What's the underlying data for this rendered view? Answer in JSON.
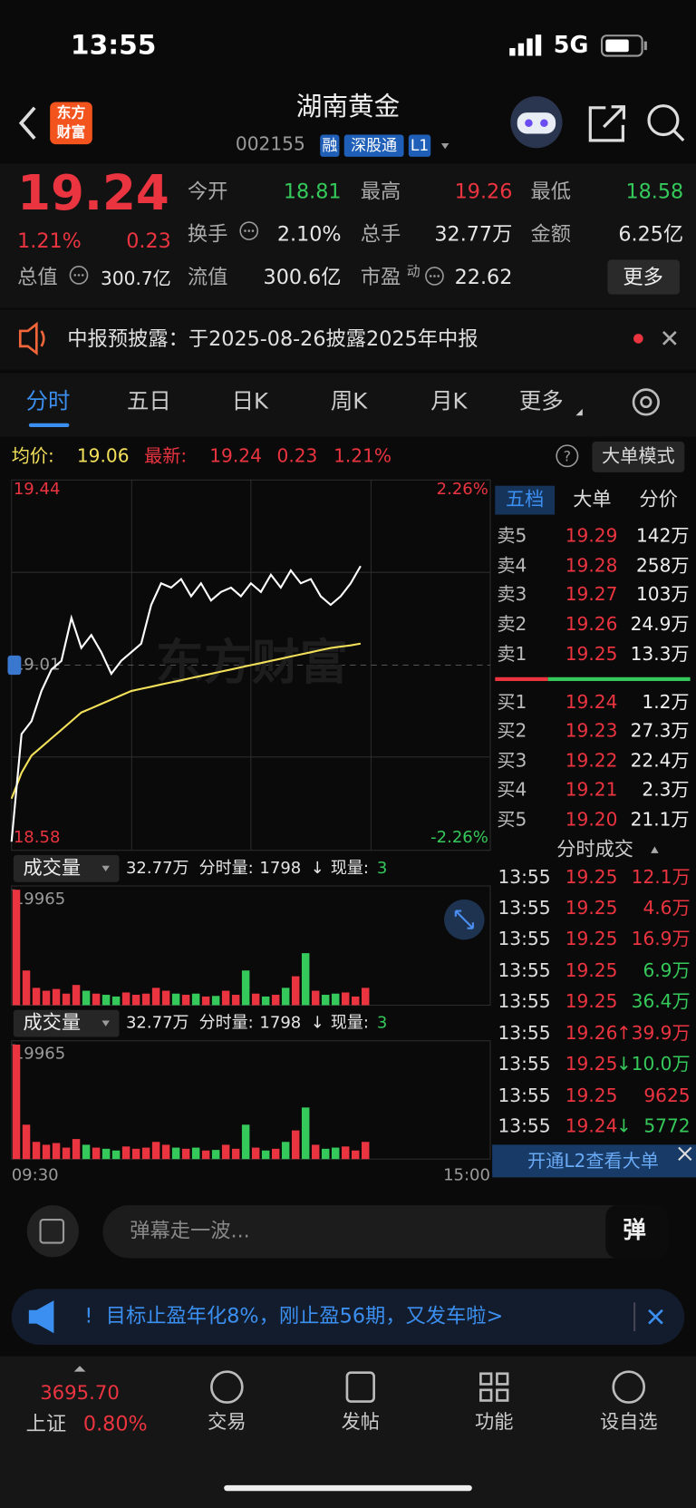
{
  "status_bar": {
    "time": "13:55",
    "network": "5G"
  },
  "header": {
    "logo": [
      "东方",
      "财富"
    ],
    "title": "湖南黄金",
    "code": "002155",
    "badges": [
      "融",
      "深股通",
      "L1"
    ]
  },
  "quote": {
    "price": "19.24",
    "change_pct": "1.21%",
    "change": "0.23",
    "stats": [
      {
        "label": "今开",
        "value": "18.81",
        "color": "#35c85a"
      },
      {
        "label": "最高",
        "value": "19.26",
        "color": "#ea3440"
      },
      {
        "label": "最低",
        "value": "18.58",
        "color": "#35c85a"
      },
      {
        "label": "换手",
        "value": "2.10%",
        "color": "#e6e6e6"
      },
      {
        "label": "总手",
        "value": "32.77万",
        "color": "#e6e6e6"
      },
      {
        "label": "金额",
        "value": "6.25亿",
        "color": "#e6e6e6"
      },
      {
        "label": "流值",
        "value": "300.6亿",
        "color": "#e6e6e6"
      },
      {
        "label": "市盈",
        "value": "22.62",
        "color": "#e6e6e6"
      }
    ],
    "total_value": {
      "label": "总值",
      "value": "300.7亿"
    },
    "pe_sup": "动",
    "more": "更多"
  },
  "notice": {
    "text": "中报预披露：于2025-08-26披露2025年中报"
  },
  "tabs": [
    "分时",
    "五日",
    "日K",
    "周K",
    "月K",
    "更多"
  ],
  "info": {
    "avg": "19.06",
    "last": "19.24",
    "change": "0.23",
    "pct": "1.21%",
    "help": "?",
    "mode": "大单模式"
  },
  "chart_data": {
    "type": "line",
    "ylim": [
      18.58,
      19.44
    ],
    "yticks": [
      18.58,
      19.01,
      19.44
    ],
    "y2lim": [
      -2.26,
      2.26
    ],
    "y2ticks": [
      {
        "value": 2.26,
        "label": "2.26%"
      },
      {
        "value": -2.26,
        "label": "-2.26%"
      }
    ],
    "x_labels": [
      "09:30",
      "15:00"
    ],
    "series": [
      {
        "name": "最新:",
        "color": "#ffffff",
        "values": [
          18.6,
          18.85,
          18.88,
          18.95,
          19.0,
          19.02,
          19.12,
          19.05,
          19.08,
          19.04,
          18.99,
          19.02,
          19.04,
          19.06,
          19.15,
          19.2,
          19.19,
          19.21,
          19.17,
          19.2,
          19.16,
          19.18,
          19.19,
          19.17,
          19.2,
          19.18,
          19.22,
          19.19,
          19.23,
          19.2,
          19.21,
          19.17,
          19.15,
          19.17,
          19.2,
          19.24
        ]
      },
      {
        "name": "均价:",
        "color": "#f2e05a",
        "values": [
          18.7,
          18.76,
          18.8,
          18.82,
          18.84,
          18.86,
          18.88,
          18.9,
          18.91,
          18.92,
          18.93,
          18.94,
          18.95,
          18.955,
          18.96,
          18.965,
          18.97,
          18.975,
          18.98,
          18.985,
          18.99,
          18.995,
          19.0,
          19.005,
          19.01,
          19.015,
          19.02,
          19.025,
          19.03,
          19.035,
          19.04,
          19.045,
          19.05,
          19.053,
          19.056,
          19.06
        ]
      }
    ],
    "volume": {
      "title": "成交量",
      "total": "32.77万",
      "minute_label": "分时量:",
      "minute": "1798",
      "arrow": "↓",
      "current_label": "现量:",
      "current": "3",
      "ylim": [
        0,
        19965
      ],
      "yticks": [
        19965
      ],
      "values": [
        19965,
        6000,
        3000,
        2500,
        2800,
        2000,
        3500,
        2500,
        2000,
        1800,
        1500,
        2200,
        1800,
        2000,
        3000,
        2500,
        2000,
        1800,
        2000,
        1500,
        1600,
        2500,
        1800,
        6000,
        2000,
        1500,
        1800,
        3000,
        5000,
        9000,
        2500,
        1800,
        2000,
        2200,
        1500,
        3000
      ]
    }
  },
  "order_book": {
    "tabs": [
      "五档",
      "大单",
      "分价"
    ],
    "asks": [
      {
        "label": "卖5",
        "price": "19.29",
        "volume": "142万"
      },
      {
        "label": "卖4",
        "price": "19.28",
        "volume": "258万"
      },
      {
        "label": "卖3",
        "price": "19.27",
        "volume": "103万"
      },
      {
        "label": "卖2",
        "price": "19.26",
        "volume": "24.9万"
      },
      {
        "label": "卖1",
        "price": "19.25",
        "volume": "13.3万"
      }
    ],
    "bids": [
      {
        "label": "买1",
        "price": "19.24",
        "volume": "1.2万"
      },
      {
        "label": "买2",
        "price": "19.23",
        "volume": "27.3万"
      },
      {
        "label": "买3",
        "price": "19.22",
        "volume": "22.4万"
      },
      {
        "label": "买4",
        "price": "19.21",
        "volume": "2.3万"
      },
      {
        "label": "买5",
        "price": "19.20",
        "volume": "21.1万"
      }
    ]
  },
  "trades": {
    "title": "分时成交",
    "rows": [
      {
        "time": "13:55",
        "price": "19.25",
        "volume": "12.1万",
        "color": "#ea3440"
      },
      {
        "time": "13:55",
        "price": "19.25",
        "volume": "4.6万",
        "color": "#ea3440"
      },
      {
        "time": "13:55",
        "price": "19.25",
        "volume": "16.9万",
        "color": "#ea3440"
      },
      {
        "time": "13:55",
        "price": "19.25",
        "volume": "6.9万",
        "color": "#35c85a"
      },
      {
        "time": "13:55",
        "price": "19.25",
        "volume": "36.4万",
        "color": "#35c85a"
      },
      {
        "time": "13:55",
        "price": "19.26",
        "arrow": "↑",
        "volume": "39.9万",
        "color": "#ea3440"
      },
      {
        "time": "13:55",
        "price": "19.25",
        "arrow": "↓",
        "volume": "10.0万",
        "color": "#35c85a"
      },
      {
        "time": "13:55",
        "price": "19.25",
        "volume": "9625",
        "color": "#ea3440"
      },
      {
        "time": "13:55",
        "price": "19.24",
        "arrow": "↓",
        "volume": "5772",
        "color": "#35c85a"
      }
    ]
  },
  "l2_banner": "开通L2查看大单",
  "comment": {
    "placeholder": "弹幕走一波...",
    "button": "弹"
  },
  "promo": {
    "mark": "!",
    "text": "目标止盈年化8%，刚止盈56期，又发车啦>"
  },
  "nav": {
    "index": {
      "value": "3695.70",
      "name": "上证",
      "change": "0.80%"
    },
    "items": [
      "交易",
      "发帖",
      "功能",
      "设自选"
    ]
  }
}
